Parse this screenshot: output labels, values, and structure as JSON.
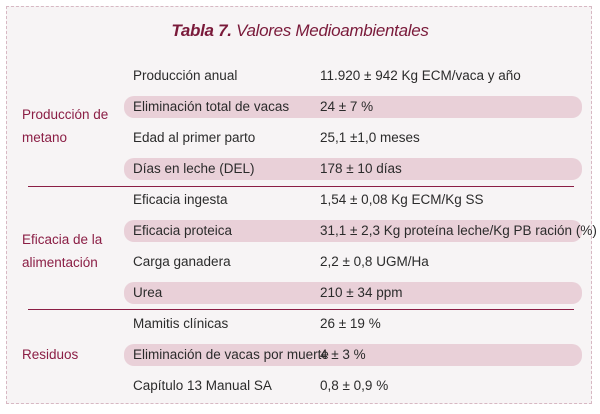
{
  "title": {
    "number": "Tabla 7.",
    "text": "Valores Medioambientales"
  },
  "sections": [
    {
      "label": "Producción de metano",
      "rows": [
        {
          "key": "Producción anual",
          "value": "11.920 ± 942 Kg ECM/vaca y año"
        },
        {
          "key": "Eliminación total de vacas",
          "value": "24 ± 7 %"
        },
        {
          "key": "Edad al primer parto",
          "value": "25,1 ±1,0 meses"
        },
        {
          "key": "Días en leche (DEL)",
          "value": "178 ± 10 días"
        }
      ]
    },
    {
      "label": "Eficacia de la alimentación",
      "rows": [
        {
          "key": "Eficacia ingesta",
          "value": "1,54 ± 0,08 Kg ECM/Kg SS"
        },
        {
          "key": "Eficacia proteica",
          "value": "31,1 ± 2,3 Kg proteína leche/Kg PB ración (%)"
        },
        {
          "key": "Carga ganadera",
          "value": "2,2 ± 0,8 UGM/Ha"
        },
        {
          "key": "Urea",
          "value": "210 ± 34 ppm"
        }
      ]
    },
    {
      "label": "Residuos",
      "rows": [
        {
          "key": "Mamitis clínicas",
          "value": "26 ± 19 %"
        },
        {
          "key": "Eliminación de vacas por muerte",
          "value": "4 ± 3 %"
        },
        {
          "key": "Capítulo 13 Manual SA",
          "value": "0,8 ± 0,9 %"
        }
      ]
    }
  ]
}
